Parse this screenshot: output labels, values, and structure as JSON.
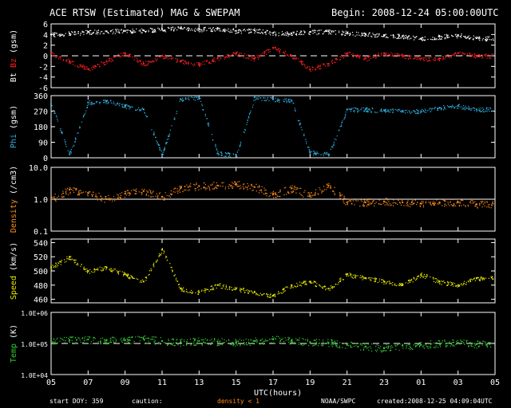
{
  "header": {
    "title": "ACE RTSW (Estimated) MAG & SWEPAM",
    "begin": "Begin: 2008-12-24 05:00:00UTC"
  },
  "footer": {
    "start_doy": "start DOY: 359",
    "caution": "caution:",
    "density_note": "density < 1",
    "agency": "NOAA/SWPC",
    "created": "created:2008-12-25 04:09:04UTC"
  },
  "colors": {
    "background": "#000000",
    "frame": "#ffffff",
    "bt": "#ffffff",
    "bz": "#ff2020",
    "phi": "#30b0e0",
    "density": "#ff8c1a",
    "speed": "#e6e600",
    "temp": "#33cc33"
  },
  "chart_data": [
    {
      "type": "scatter",
      "panel": "mag",
      "ylabel": [
        "Bt",
        "Bz",
        "(gsm)"
      ],
      "ylim": [
        -6,
        6
      ],
      "yticks": [
        "6",
        "4",
        "2",
        "0",
        "-2",
        "-4",
        "-6"
      ],
      "reference_line": 0,
      "x": [
        5,
        6,
        7,
        8,
        9,
        10,
        11,
        12,
        13,
        14,
        15,
        16,
        17,
        18,
        19,
        20,
        21,
        22,
        23,
        24,
        25,
        26,
        27,
        28
      ],
      "series": [
        {
          "name": "Bt",
          "values": [
            4,
            4.2,
            4.5,
            4.6,
            4.7,
            4.8,
            5.0,
            5.2,
            5.0,
            5.1,
            4.7,
            4.8,
            4.3,
            4.2,
            4.5,
            4.6,
            4.3,
            4.1,
            3.9,
            3.7,
            3.2,
            3.6,
            3.9,
            3.3
          ]
        },
        {
          "name": "Bz",
          "values": [
            0.5,
            -1.0,
            -2.5,
            -1.0,
            0.5,
            -1.5,
            0.0,
            -1.0,
            -1.5,
            -0.5,
            0.5,
            -0.5,
            1.5,
            0.0,
            -2.5,
            -1.5,
            0.5,
            -0.5,
            0.5,
            0.0,
            -0.5,
            -0.5,
            0.5,
            0.0
          ]
        }
      ]
    },
    {
      "type": "scatter",
      "panel": "phi",
      "ylabel": [
        "Phi",
        "(gsm)"
      ],
      "ylim": [
        0,
        360
      ],
      "yticks": [
        "360",
        "270",
        "180",
        "90",
        "0"
      ],
      "x": [
        5,
        6,
        7,
        8,
        9,
        10,
        11,
        12,
        13,
        14,
        15,
        16,
        17,
        18,
        19,
        20,
        21,
        22,
        23,
        24,
        25,
        26,
        27,
        28
      ],
      "series": [
        {
          "name": "Phi",
          "values": [
            310,
            20,
            320,
            330,
            300,
            280,
            20,
            340,
            350,
            25,
            15,
            350,
            340,
            330,
            30,
            20,
            280,
            280,
            275,
            270,
            270,
            290,
            300,
            280
          ]
        }
      ]
    },
    {
      "type": "scatter",
      "panel": "density",
      "ylabel": [
        "Density",
        "(/cm3)"
      ],
      "yscale": "log",
      "ylim": [
        0.1,
        10
      ],
      "yticks": [
        "10.0",
        "1.0",
        "0.1"
      ],
      "reference_line": 1.0,
      "x": [
        5,
        6,
        7,
        8,
        9,
        10,
        11,
        12,
        13,
        14,
        15,
        16,
        17,
        18,
        19,
        20,
        21,
        22,
        23,
        24,
        25,
        26,
        27,
        28
      ],
      "series": [
        {
          "name": "Density",
          "values": [
            1.0,
            2.0,
            1.6,
            1.0,
            1.5,
            1.8,
            1.2,
            2.2,
            2.6,
            2.7,
            3.0,
            2.4,
            1.4,
            2.2,
            1.3,
            2.7,
            0.8,
            0.8,
            0.85,
            0.8,
            0.75,
            0.8,
            0.8,
            0.7
          ]
        }
      ]
    },
    {
      "type": "scatter",
      "panel": "speed",
      "ylabel": [
        "Speed",
        "(km/s)"
      ],
      "ylim": [
        455,
        545
      ],
      "yticks": [
        "540",
        "520",
        "500",
        "480",
        "460"
      ],
      "x": [
        5,
        6,
        7,
        8,
        9,
        10,
        11,
        12,
        13,
        14,
        15,
        16,
        17,
        18,
        19,
        20,
        21,
        22,
        23,
        24,
        25,
        26,
        27,
        28
      ],
      "series": [
        {
          "name": "Speed",
          "values": [
            505,
            520,
            500,
            505,
            495,
            485,
            530,
            475,
            470,
            480,
            475,
            470,
            465,
            480,
            485,
            475,
            495,
            490,
            485,
            480,
            495,
            485,
            480,
            490
          ]
        }
      ]
    },
    {
      "type": "scatter",
      "panel": "temp",
      "ylabel": [
        "Temp",
        "(K)"
      ],
      "yscale": "log",
      "ylim": [
        10000,
        1000000
      ],
      "yticks": [
        "1.0E+06",
        "1.0E+05",
        "1.0E+04"
      ],
      "reference_line": 100000,
      "x": [
        5,
        6,
        7,
        8,
        9,
        10,
        11,
        12,
        13,
        14,
        15,
        16,
        17,
        18,
        19,
        20,
        21,
        22,
        23,
        24,
        25,
        26,
        27,
        28
      ],
      "series": [
        {
          "name": "Temp",
          "values": [
            120000,
            130000,
            135000,
            125000,
            130000,
            140000,
            120000,
            110000,
            120000,
            115000,
            110000,
            120000,
            135000,
            125000,
            110000,
            105000,
            90000,
            80000,
            70000,
            85000,
            90000,
            100000,
            105000,
            95000
          ]
        }
      ]
    }
  ],
  "x_axis": {
    "label": "UTC(hours)",
    "range": [
      5,
      29
    ],
    "ticks": [
      "05",
      "07",
      "09",
      "11",
      "13",
      "15",
      "17",
      "19",
      "21",
      "23",
      "01",
      "03",
      "05"
    ]
  }
}
